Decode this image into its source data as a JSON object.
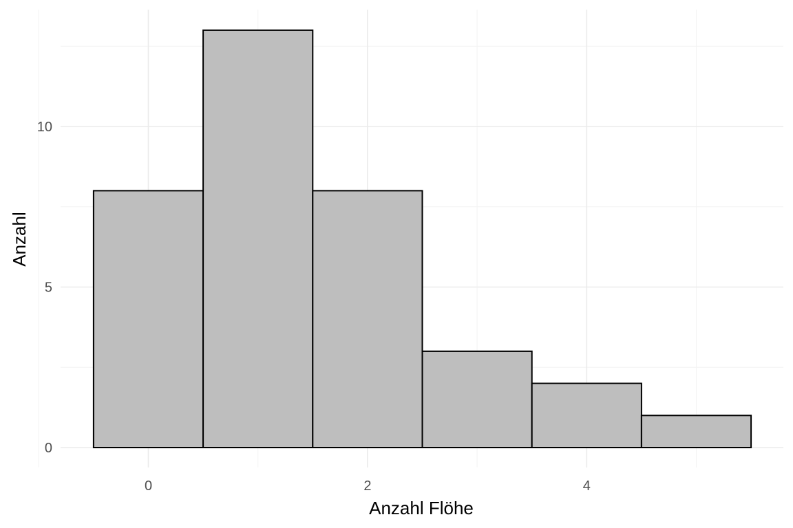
{
  "chart_data": {
    "type": "bar",
    "subtype": "histogram",
    "title": "",
    "xlabel": "Anzahl Flöhe",
    "ylabel": "Anzahl",
    "bins": [
      {
        "x": 0,
        "count": 8
      },
      {
        "x": 1,
        "count": 13
      },
      {
        "x": 2,
        "count": 8
      },
      {
        "x": 3,
        "count": 3
      },
      {
        "x": 4,
        "count": 2
      },
      {
        "x": 5,
        "count": 1
      }
    ],
    "bin_width": 1,
    "xlim": [
      -0.5,
      5.5
    ],
    "ylim": [
      0,
      13
    ],
    "x_ticks": [
      0,
      2,
      4
    ],
    "y_ticks": [
      0,
      5,
      10
    ],
    "x_tick_labels": [
      "0",
      "2",
      "4"
    ],
    "y_tick_labels": [
      "0",
      "5",
      "10"
    ],
    "grid": true,
    "bar_fill": "#bebebe",
    "bar_outline": "#000000",
    "grid_color": "#ebebeb",
    "background": "#ffffff"
  }
}
